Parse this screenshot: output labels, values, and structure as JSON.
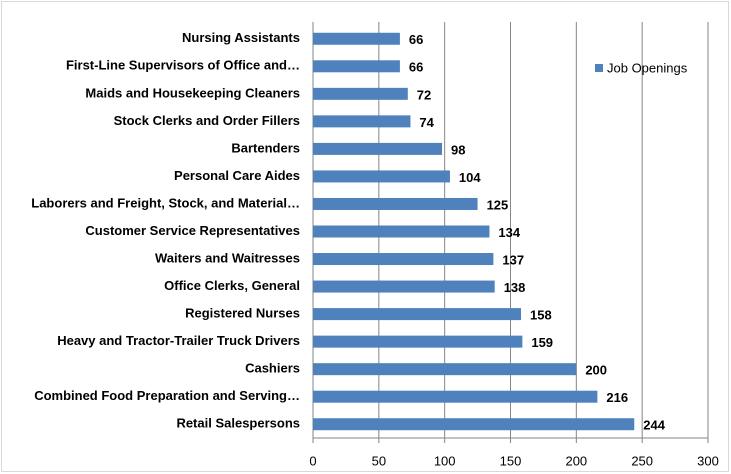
{
  "chart_data": {
    "type": "bar",
    "orientation": "horizontal",
    "categories": [
      "Nursing Assistants",
      "First-Line Supervisors of Office and…",
      "Maids and Housekeeping Cleaners",
      "Stock Clerks and Order Fillers",
      "Bartenders",
      "Personal Care Aides",
      "Laborers and Freight, Stock, and Material…",
      "Customer Service Representatives",
      "Waiters and Waitresses",
      "Office Clerks, General",
      "Registered Nurses",
      "Heavy and Tractor-Trailer Truck Drivers",
      "Cashiers",
      "Combined Food Preparation and Serving…",
      "Retail Salespersons"
    ],
    "series": [
      {
        "name": "Job Openings",
        "color": "#4f81bd",
        "values": [
          66,
          66,
          72,
          74,
          98,
          104,
          125,
          134,
          137,
          138,
          158,
          159,
          200,
          216,
          244
        ]
      }
    ],
    "xlim": [
      0,
      300
    ],
    "xticks": [
      0,
      50,
      100,
      150,
      200,
      250,
      300
    ],
    "grid": true,
    "legend": "upper right"
  }
}
